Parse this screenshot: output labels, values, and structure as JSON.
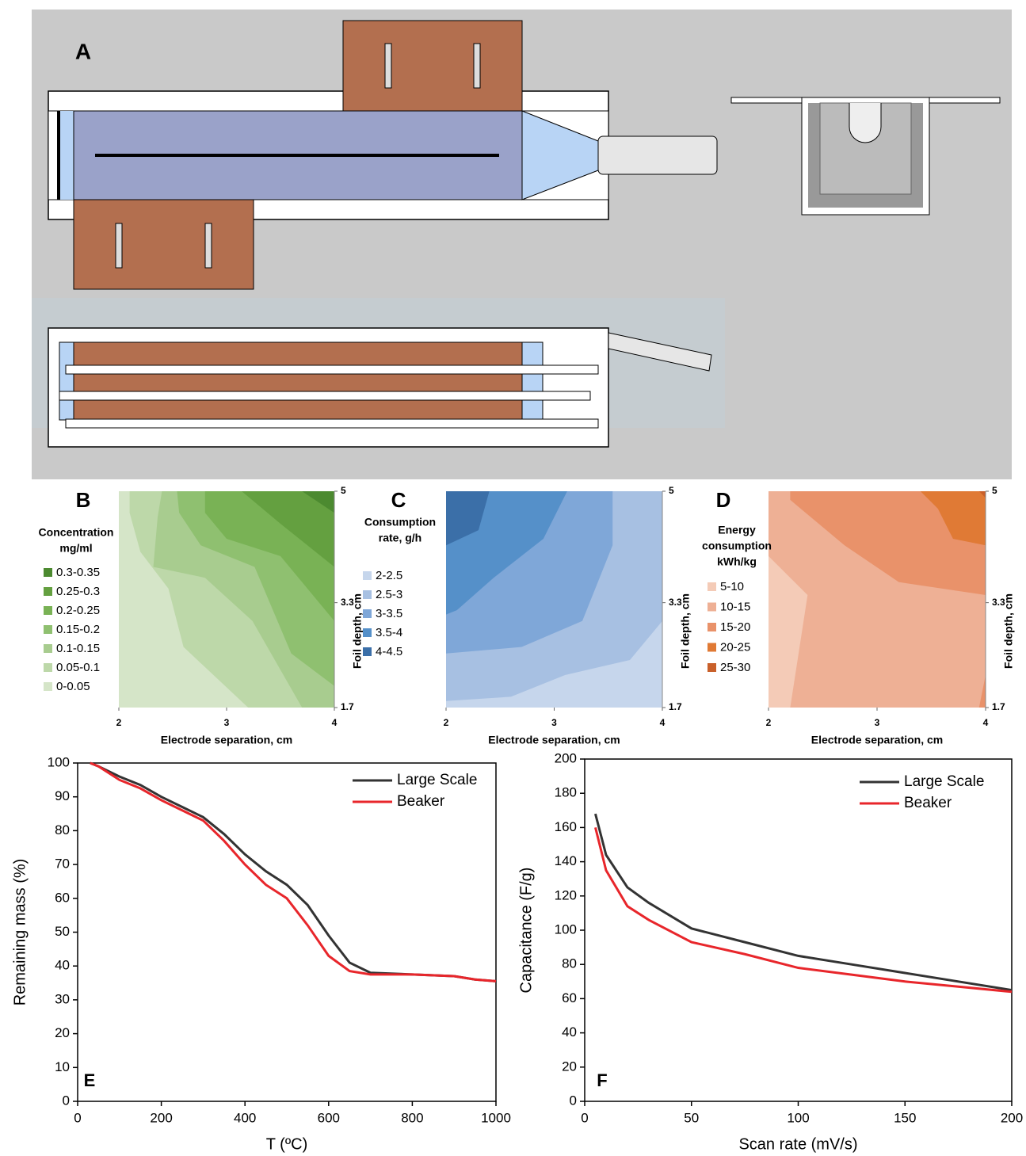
{
  "diagram": {
    "label": "A"
  },
  "chart_data": [
    {
      "type": "contour",
      "label": "B",
      "legend_title": [
        "Concentration",
        "mg/ml"
      ],
      "levels": [
        "0.3-0.35",
        "0.25-0.3",
        "0.2-0.25",
        "0.15-0.2",
        "0.1-0.15",
        "0.05-0.1",
        "0-0.05"
      ],
      "colors": [
        "#4c8a30",
        "#64a040",
        "#79b255",
        "#8fc070",
        "#a8cc8f",
        "#bdd8a9",
        "#d5e5c8"
      ],
      "xlabel": "Electrode separation, cm",
      "ylabel": "Foil depth, cm",
      "xlim": [
        2,
        4
      ],
      "xticks": [
        2,
        3,
        4
      ],
      "ylim": [
        1.7,
        5
      ],
      "yticks": [
        1.7,
        3.3,
        5
      ]
    },
    {
      "type": "contour",
      "label": "C",
      "legend_title": [
        "Consumption",
        "rate, g/h"
      ],
      "levels": [
        "2-2.5",
        "2.5-3",
        "3-3.5",
        "3.5-4",
        "4-4.5"
      ],
      "colors": [
        "#c6d6ec",
        "#a7c0e2",
        "#7fa7d8",
        "#5590c9",
        "#3b6fa8"
      ],
      "xlabel": "Electrode separation, cm",
      "ylabel": "Foil depth, cm",
      "xlim": [
        2,
        4
      ],
      "xticks": [
        2,
        3,
        4
      ],
      "ylim": [
        1.7,
        5
      ],
      "yticks": [
        1.7,
        3.3,
        5
      ]
    },
    {
      "type": "contour",
      "label": "D",
      "legend_title": [
        "Energy",
        "consumption",
        "kWh/kg"
      ],
      "levels": [
        "5-10",
        "10-15",
        "15-20",
        "20-25",
        "25-30"
      ],
      "colors": [
        "#f4cbb7",
        "#eeb095",
        "#e9926a",
        "#e07a35",
        "#c9602a"
      ],
      "xlabel": "Electrode separation, cm",
      "ylabel": "Foil depth, cm",
      "xlim": [
        2,
        4
      ],
      "xticks": [
        2,
        3,
        4
      ],
      "ylim": [
        1.7,
        5
      ],
      "yticks": [
        1.7,
        3.3,
        5
      ]
    },
    {
      "type": "line",
      "label": "E",
      "xlabel": "T (ºC)",
      "ylabel": "Remaining mass (%)",
      "x": [
        30,
        50,
        100,
        150,
        200,
        250,
        300,
        350,
        400,
        450,
        500,
        550,
        600,
        650,
        700,
        800,
        900,
        950,
        1000
      ],
      "series": [
        {
          "name": "Large Scale",
          "color": "#333333",
          "values": [
            100,
            99,
            96,
            93.5,
            90,
            87,
            84,
            79,
            73,
            68,
            64,
            58,
            49,
            41,
            38,
            37.5,
            37,
            36,
            35.5
          ]
        },
        {
          "name": "Beaker",
          "color": "#e8262b",
          "values": [
            100,
            99,
            95,
            92.5,
            89,
            86,
            83,
            77,
            70,
            64,
            60,
            52,
            43,
            38.5,
            37.5,
            37.5,
            37,
            36,
            35.5
          ]
        }
      ],
      "xlim": [
        0,
        1000
      ],
      "xticks": [
        0,
        200,
        400,
        600,
        800,
        1000
      ],
      "ylim": [
        0,
        100
      ],
      "yticks": [
        0,
        10,
        20,
        30,
        40,
        50,
        60,
        70,
        80,
        90,
        100
      ]
    },
    {
      "type": "line",
      "label": "F",
      "xlabel": "Scan rate (mV/s)",
      "ylabel": "Capacitance (F/g)",
      "x": [
        5,
        10,
        20,
        30,
        50,
        75,
        100,
        125,
        150,
        175,
        200
      ],
      "series": [
        {
          "name": "Large Scale",
          "color": "#333333",
          "values": [
            168,
            144,
            125,
            116,
            101,
            93,
            85,
            80,
            75,
            70,
            65
          ]
        },
        {
          "name": "Beaker",
          "color": "#e8262b",
          "values": [
            160,
            135,
            114,
            106,
            93,
            86,
            78,
            74,
            70,
            67,
            64
          ]
        }
      ],
      "xlim": [
        0,
        200
      ],
      "xticks": [
        0,
        50,
        100,
        150,
        200
      ],
      "ylim": [
        0,
        200
      ],
      "yticks": [
        0,
        20,
        40,
        60,
        80,
        100,
        120,
        140,
        160,
        180,
        200
      ]
    }
  ]
}
